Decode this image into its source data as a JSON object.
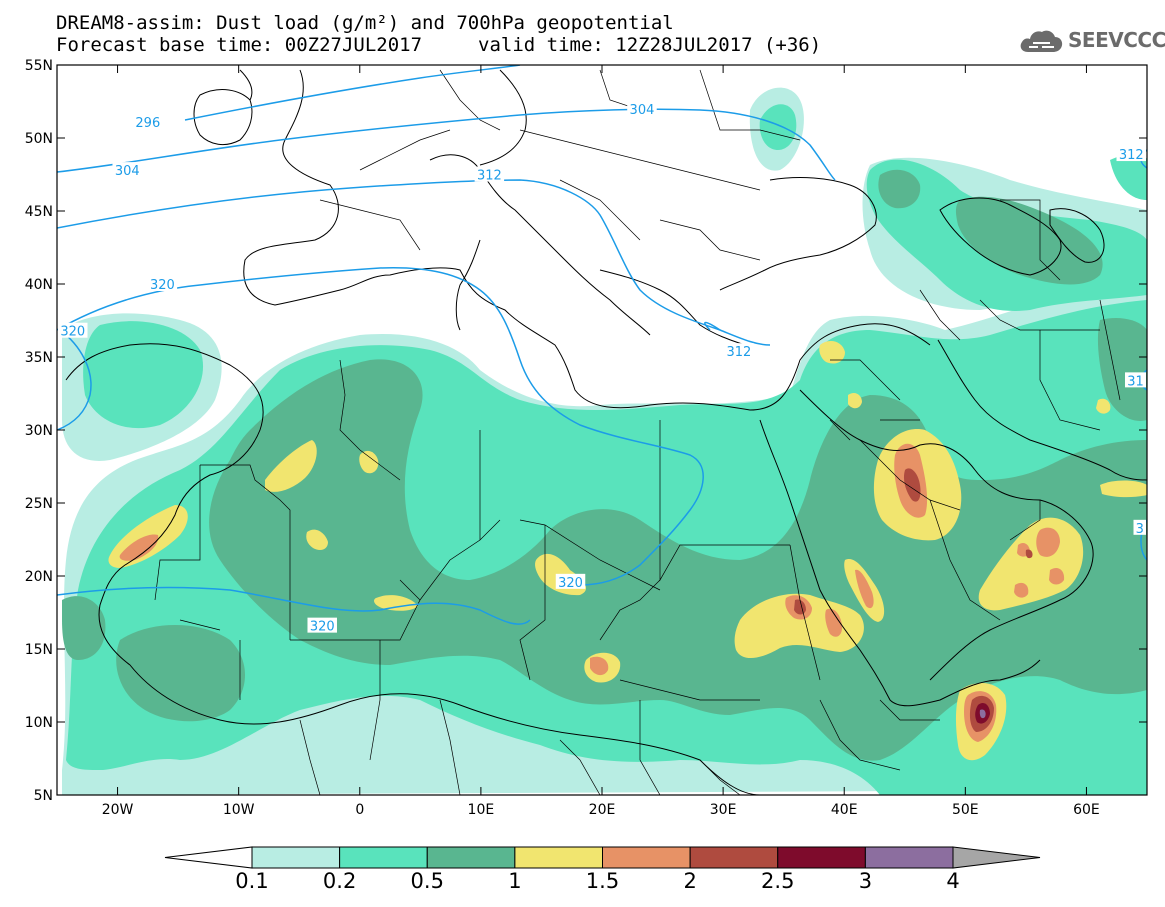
{
  "title": {
    "line1": "DREAM8-assim: Dust load (g/m²) and 700hPa geopotential",
    "line2_left": "Forecast base time: 00Z27JUL2017",
    "line2_right": "valid time: 12Z28JUL2017 (+36)"
  },
  "logo": {
    "text": "SEEVCCC",
    "icon": "cloud-icon"
  },
  "map": {
    "lon_range": [
      -25,
      65
    ],
    "lat_range": [
      5,
      55
    ],
    "lon_ticks": [
      {
        "value": -20,
        "label": "20W"
      },
      {
        "value": -10,
        "label": "10W"
      },
      {
        "value": 0,
        "label": "0"
      },
      {
        "value": 10,
        "label": "10E"
      },
      {
        "value": 20,
        "label": "20E"
      },
      {
        "value": 30,
        "label": "30E"
      },
      {
        "value": 40,
        "label": "40E"
      },
      {
        "value": 50,
        "label": "50E"
      },
      {
        "value": 60,
        "label": "60E"
      }
    ],
    "lat_ticks": [
      {
        "value": 55,
        "label": "55N"
      },
      {
        "value": 50,
        "label": "50N"
      },
      {
        "value": 45,
        "label": "45N"
      },
      {
        "value": 40,
        "label": "40N"
      },
      {
        "value": 35,
        "label": "35N"
      },
      {
        "value": 30,
        "label": "30N"
      },
      {
        "value": 25,
        "label": "25N"
      },
      {
        "value": 20,
        "label": "20N"
      },
      {
        "value": 15,
        "label": "15N"
      },
      {
        "value": 10,
        "label": "10N"
      },
      {
        "value": 5,
        "label": "5N"
      }
    ],
    "contour_labels": [
      {
        "text": "296",
        "lon": -17.5,
        "lat": 51.1
      },
      {
        "text": "304",
        "lon": -19.2,
        "lat": 47.8
      },
      {
        "text": "304",
        "lon": 23.3,
        "lat": 52.0
      },
      {
        "text": "312",
        "lon": 10.7,
        "lat": 47.5
      },
      {
        "text": "312",
        "lon": 31.3,
        "lat": 35.4
      },
      {
        "text": "312",
        "lon": 64.5,
        "lat": 48.9
      },
      {
        "text": "320",
        "lon": -16.3,
        "lat": 40.0
      },
      {
        "text": "320",
        "lon": -25.3,
        "lat": 36.8
      },
      {
        "text": "320",
        "lon": 17.4,
        "lat": 19.6
      },
      {
        "text": "320",
        "lon": -3.1,
        "lat": 16.6
      },
      {
        "text": "31",
        "lon": 64.6,
        "lat": 33.4
      },
      {
        "text": "3",
        "lon": 64.7,
        "lat": 23.3
      }
    ]
  },
  "colorbar": {
    "colors": [
      "#ffffff",
      "#b8ede3",
      "#59e3bc",
      "#59b690",
      "#f1e56f",
      "#e79266",
      "#af4b3f",
      "#7e0b2c",
      "#8c6e9f",
      "#a6a6a6"
    ],
    "labels": [
      "0.1",
      "0.2",
      "0.5",
      "1",
      "1.5",
      "2",
      "2.5",
      "3",
      "4"
    ]
  }
}
